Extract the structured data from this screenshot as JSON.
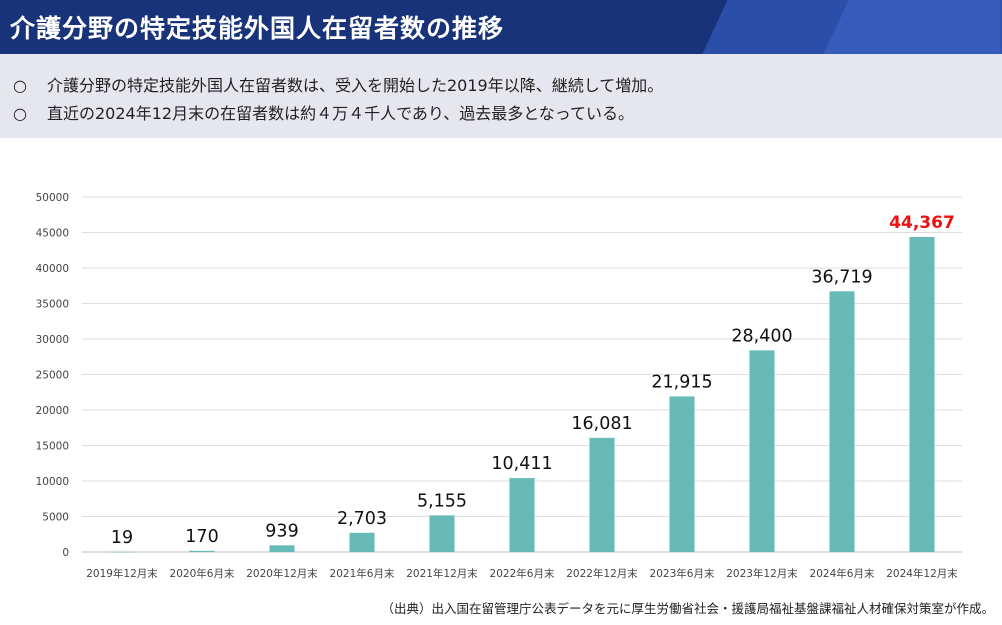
{
  "header": {
    "title": "介護分野の特定技能外国人在留者数の推移"
  },
  "summary": {
    "bullet_mark": "○",
    "lines": [
      "介護分野の特定技能外国人在留者数は、受入を開始した2019年以降、継続して増加。",
      "直近の2024年12月末の在留者数は約４万４千人であり、過去最多となっている。"
    ]
  },
  "chart_data": {
    "type": "bar",
    "title": "",
    "xlabel": "",
    "ylabel": "",
    "categories": [
      "2019年12月末",
      "2020年6月末",
      "2020年12月末",
      "2021年6月末",
      "2021年12月末",
      "2022年6月末",
      "2022年12月末",
      "2023年6月末",
      "2023年12月末",
      "2024年6月末",
      "2024年12月末"
    ],
    "values": [
      19,
      170,
      939,
      2703,
      5155,
      10411,
      16081,
      21915,
      28400,
      36719,
      44367
    ],
    "value_labels": [
      "19",
      "170",
      "939",
      "2,703",
      "5,155",
      "10,411",
      "16,081",
      "21,915",
      "28,400",
      "36,719",
      "44,367"
    ],
    "ylim": [
      0,
      50000
    ],
    "yticks": [
      0,
      5000,
      10000,
      15000,
      20000,
      25000,
      30000,
      35000,
      40000,
      45000,
      50000
    ],
    "grid": true,
    "bar_color": "#66bab8",
    "highlight_color": "#ee1111"
  },
  "source": "（出典）出入国在留管理庁公表データを元に厚生労働省社会・援護局福祉基盤課福祉人材確保対策室が作成。"
}
